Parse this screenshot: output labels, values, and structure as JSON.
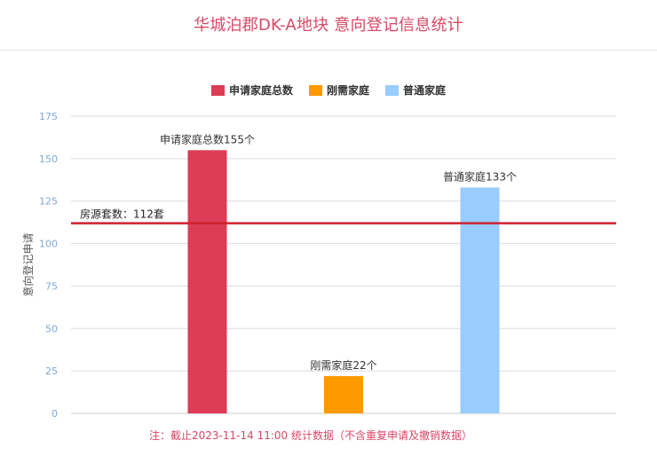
{
  "title": "华城泊郡DK-A地块 意向登记信息统计",
  "note": "注：截止2023-11-14 11:00 统计数据（不含重复申请及撤销数据）",
  "chart_data": {
    "type": "bar",
    "ylabel": "意向登记申请",
    "ylim": [
      0,
      175
    ],
    "yticks": [
      0,
      25,
      50,
      75,
      100,
      125,
      150,
      175
    ],
    "grid": true,
    "legend_position": "top-center",
    "series": [
      {
        "name": "申请家庭总数",
        "value": 155,
        "label": "申请家庭总数155个",
        "color": "#dc3c55"
      },
      {
        "name": "刚需家庭",
        "value": 22,
        "label": "刚需家庭22个",
        "color": "#ff9900"
      },
      {
        "name": "普通家庭",
        "value": 133,
        "label": "普通家庭133个",
        "color": "#99ccff"
      }
    ],
    "reference_line": {
      "value": 112,
      "label": "房源套数：112套",
      "color": "#d0212f"
    }
  }
}
